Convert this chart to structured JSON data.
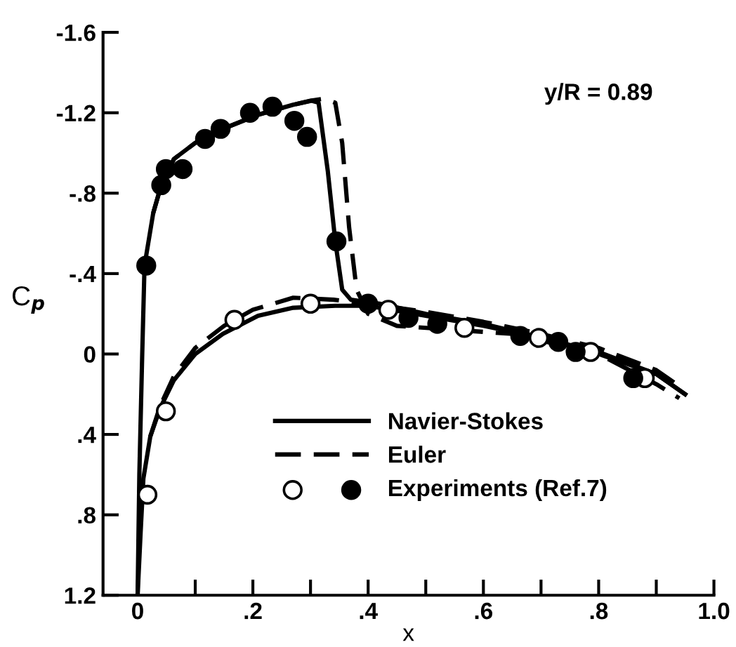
{
  "chart_data": {
    "type": "line",
    "xlabel": "x",
    "ylabel": "C$_{p}$",
    "annotations": [
      "y/R = 0.89"
    ],
    "xlim": [
      -0.06,
      1.0
    ],
    "ylim": [
      1.2,
      -1.6
    ],
    "xticks": [
      0,
      {
        "value": 0.1,
        "label": null
      },
      {
        "value": 0.2,
        "label": ".2"
      },
      {
        "value": 0.3,
        "label": null
      },
      {
        "value": 0.4,
        "label": ".4"
      },
      {
        "value": 0.5,
        "label": null
      },
      {
        "value": 0.6,
        "label": ".6"
      },
      {
        "value": 0.7,
        "label": null
      },
      {
        "value": 0.8,
        "label": ".8"
      },
      {
        "value": 0.9,
        "label": null
      },
      {
        "value": 1.0,
        "label": "1.0"
      }
    ],
    "yticks": [
      -1.6,
      -1.2,
      {
        "value": -0.8,
        "label": "-.8"
      },
      {
        "value": -0.4,
        "label": "-.4"
      },
      0,
      {
        "value": 0.4,
        "label": ".4"
      },
      {
        "value": 0.8,
        "label": ".8"
      },
      1.2
    ],
    "grid": false,
    "legend": "bottom right",
    "series": [
      {
        "name": "Navier-Stokes",
        "line_style": "solid",
        "color": "#000000",
        "x": [
          0.0,
          0.003,
          0.008,
          0.012,
          0.027,
          0.041,
          0.063,
          0.1,
          0.148,
          0.209,
          0.27,
          0.302,
          0.314,
          0.33,
          0.343,
          0.355,
          0.37,
          0.42,
          0.5,
          0.6,
          0.7,
          0.8,
          0.9,
          0.95
        ],
        "values": [
          1.2,
          0.6,
          0.0,
          -0.44,
          -0.7,
          -0.84,
          -0.97,
          -1.05,
          -1.12,
          -1.19,
          -1.24,
          -1.26,
          -1.25,
          -0.91,
          -0.56,
          -0.32,
          -0.27,
          -0.25,
          -0.2,
          -0.15,
          -0.08,
          0.0,
          0.1,
          0.2
        ]
      },
      {
        "line_style": "solid",
        "color": "#000000",
        "x": [
          0.0,
          0.005,
          0.01,
          0.022,
          0.039,
          0.063,
          0.1,
          0.148,
          0.209,
          0.27,
          0.343,
          0.4,
          0.5,
          0.6,
          0.7,
          0.8,
          0.9,
          0.95
        ],
        "values": [
          1.2,
          0.9,
          0.62,
          0.41,
          0.27,
          0.13,
          0.0,
          -0.1,
          -0.19,
          -0.23,
          -0.24,
          -0.24,
          -0.19,
          -0.14,
          -0.08,
          -0.01,
          0.1,
          0.2
        ]
      },
      {
        "name": "Euler",
        "line_style": "dashed",
        "color": "#000000",
        "x": [
          0.027,
          0.041,
          0.063,
          0.1,
          0.148,
          0.209,
          0.27,
          0.3,
          0.324,
          0.343,
          0.355,
          0.367,
          0.38,
          0.4,
          0.45,
          0.55,
          0.65,
          0.8,
          0.9,
          0.94
        ],
        "values": [
          -0.7,
          -0.84,
          -0.97,
          -1.05,
          -1.12,
          -1.19,
          -1.24,
          -1.26,
          -1.27,
          -1.25,
          -1.05,
          -0.63,
          -0.32,
          -0.2,
          -0.14,
          -0.12,
          -0.1,
          0.0,
          0.15,
          0.22
        ]
      },
      {
        "line_style": "dashed",
        "color": "#000000",
        "x": [
          0.022,
          0.039,
          0.063,
          0.1,
          0.15,
          0.2,
          0.27,
          0.34,
          0.4,
          0.5,
          0.6,
          0.7,
          0.8,
          0.9,
          0.94
        ],
        "values": [
          0.41,
          0.26,
          0.11,
          -0.03,
          -0.14,
          -0.22,
          -0.28,
          -0.27,
          -0.25,
          -0.21,
          -0.16,
          -0.1,
          -0.03,
          0.08,
          0.16
        ]
      },
      {
        "type": "scatter",
        "marker": "open circle",
        "color": "#000000",
        "x": [
          0.017,
          0.049,
          0.168,
          0.3,
          0.435,
          0.567,
          0.696,
          0.786,
          0.88
        ],
        "values": [
          0.7,
          0.285,
          -0.17,
          -0.25,
          -0.22,
          -0.13,
          -0.08,
          -0.01,
          0.12
        ]
      },
      {
        "name": "Experiments (Ref.7)",
        "type": "scatter",
        "marker": "circle",
        "color": "#000000",
        "x": [
          0.015,
          0.041,
          0.049,
          0.078,
          0.117,
          0.144,
          0.195,
          0.234,
          0.272,
          0.294,
          0.345,
          0.4,
          0.47,
          0.52,
          0.664,
          0.73,
          0.76,
          0.86
        ],
        "values": [
          -0.44,
          -0.84,
          -0.92,
          -0.92,
          -1.07,
          -1.12,
          -1.2,
          -1.23,
          -1.16,
          -1.08,
          -0.56,
          -0.25,
          -0.18,
          -0.15,
          -0.09,
          -0.06,
          -0.01,
          0.12
        ]
      }
    ]
  }
}
